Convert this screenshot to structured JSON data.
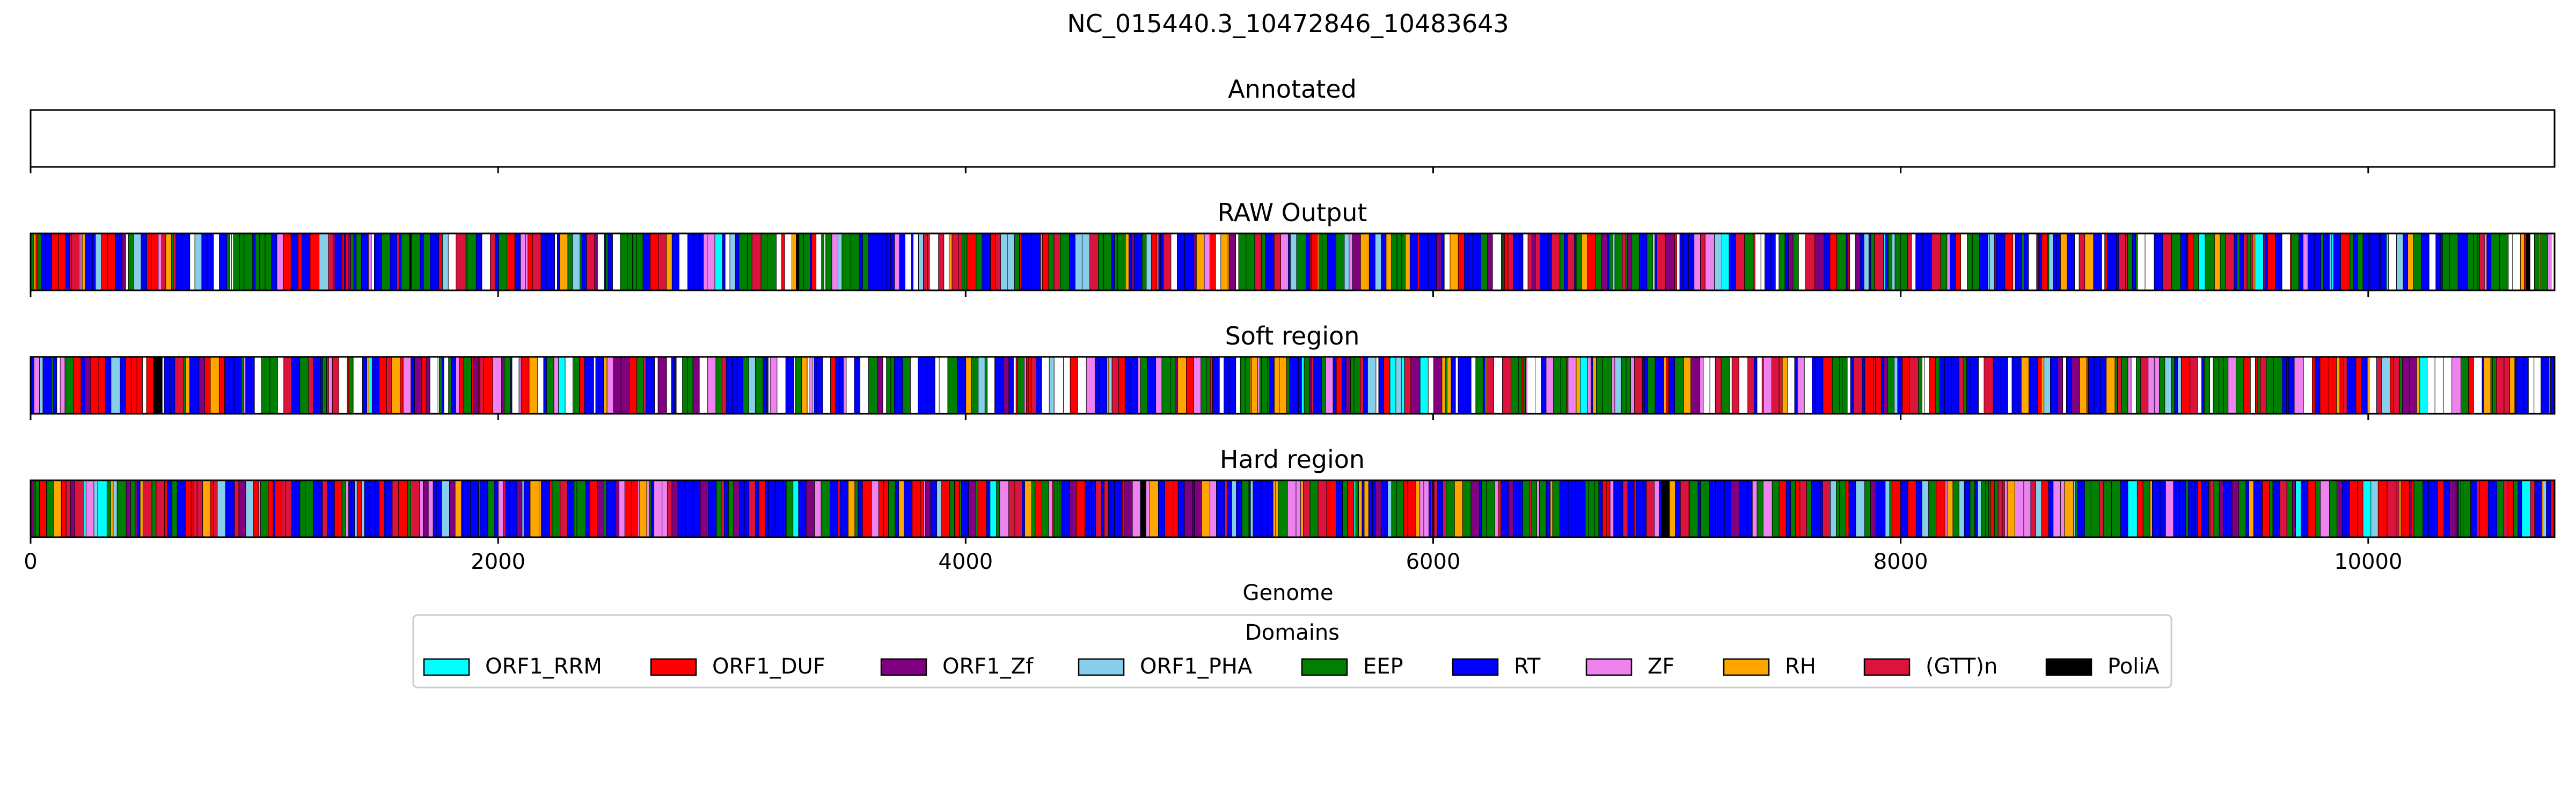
{
  "chart_data": {
    "type": "genome-track",
    "title": "NC_015440.3_10472846_10483643",
    "xlabel": "Genome",
    "xlim": [
      0,
      10797
    ],
    "xticks": [
      0,
      2000,
      4000,
      6000,
      8000,
      10000
    ],
    "tick_labels": [
      "0",
      "2000",
      "4000",
      "6000",
      "8000",
      "10000"
    ],
    "tracks": [
      {
        "title": "Annotated",
        "segments": []
      },
      {
        "title": "RAW Output",
        "pattern_seed": 11,
        "white_fraction": 0.12
      },
      {
        "title": "Soft region",
        "pattern_seed": 23,
        "white_fraction": 0.12
      },
      {
        "title": "Hard region",
        "pattern_seed": 37,
        "white_fraction": 0.0
      }
    ],
    "legend": {
      "title": "Domains",
      "placement": "bottom-center",
      "entries": [
        {
          "label": "ORF1_RRM",
          "color": "#00ffff"
        },
        {
          "label": "ORF1_DUF",
          "color": "#ff0000"
        },
        {
          "label": "ORF1_Zf",
          "color": "#800080"
        },
        {
          "label": "ORF1_PHA",
          "color": "#87ceeb"
        },
        {
          "label": "EEP",
          "color": "#008000"
        },
        {
          "label": "RT",
          "color": "#0000ff"
        },
        {
          "label": "ZF",
          "color": "#ee82ee"
        },
        {
          "label": "RH",
          "color": "#ffa500"
        },
        {
          "label": "(GTT)n",
          "color": "#dc143c"
        },
        {
          "label": "PoliA",
          "color": "#000000"
        }
      ]
    }
  }
}
